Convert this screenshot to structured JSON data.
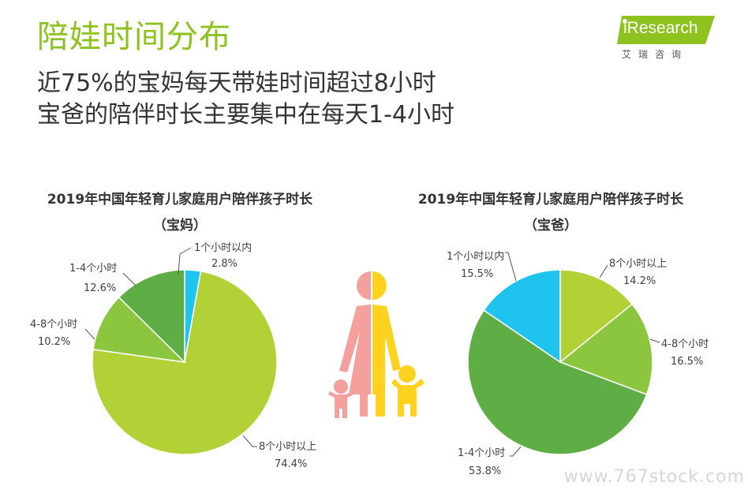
{
  "header": {
    "title": "陪娃时间分布",
    "subtitle_line1": "近75%的宝妈每天带娃时间超过8小时",
    "subtitle_line2": "宝爸的陪伴时长主要集中在每天1-4小时"
  },
  "logo": {
    "text": "iResearch",
    "cn": "艾瑞咨询",
    "color": "#8dc21f"
  },
  "watermark": "www.767stock.com",
  "chart_data": [
    {
      "type": "pie",
      "title": "2019年中国年轻育儿家庭用户陪伴孩子时长",
      "subtitle": "（宝妈）",
      "slices": [
        {
          "label": "1个小时以内",
          "value": 2.8,
          "display": "2.8%",
          "color": "#1fc4ee"
        },
        {
          "label": "8个小时以上",
          "value": 74.4,
          "display": "74.4%",
          "color": "#b1d136"
        },
        {
          "label": "4-8个小时",
          "value": 10.2,
          "display": "10.2%",
          "color": "#8cc63f"
        },
        {
          "label": "1-4个小时",
          "value": 12.6,
          "display": "12.6%",
          "color": "#5fae45"
        }
      ]
    },
    {
      "type": "pie",
      "title": "2019年中国年轻育儿家庭用户陪伴孩子时长",
      "subtitle": "（宝爸）",
      "slices": [
        {
          "label": "8个小时以上",
          "value": 14.2,
          "display": "14.2%",
          "color": "#b1d136"
        },
        {
          "label": "4-8个小时",
          "value": 16.5,
          "display": "16.5%",
          "color": "#8cc63f"
        },
        {
          "label": "1-4个小时",
          "value": 53.8,
          "display": "53.8%",
          "color": "#5fae45"
        },
        {
          "label": "1个小时以内",
          "value": 15.5,
          "display": "15.5%",
          "color": "#1fc4ee"
        }
      ]
    }
  ]
}
